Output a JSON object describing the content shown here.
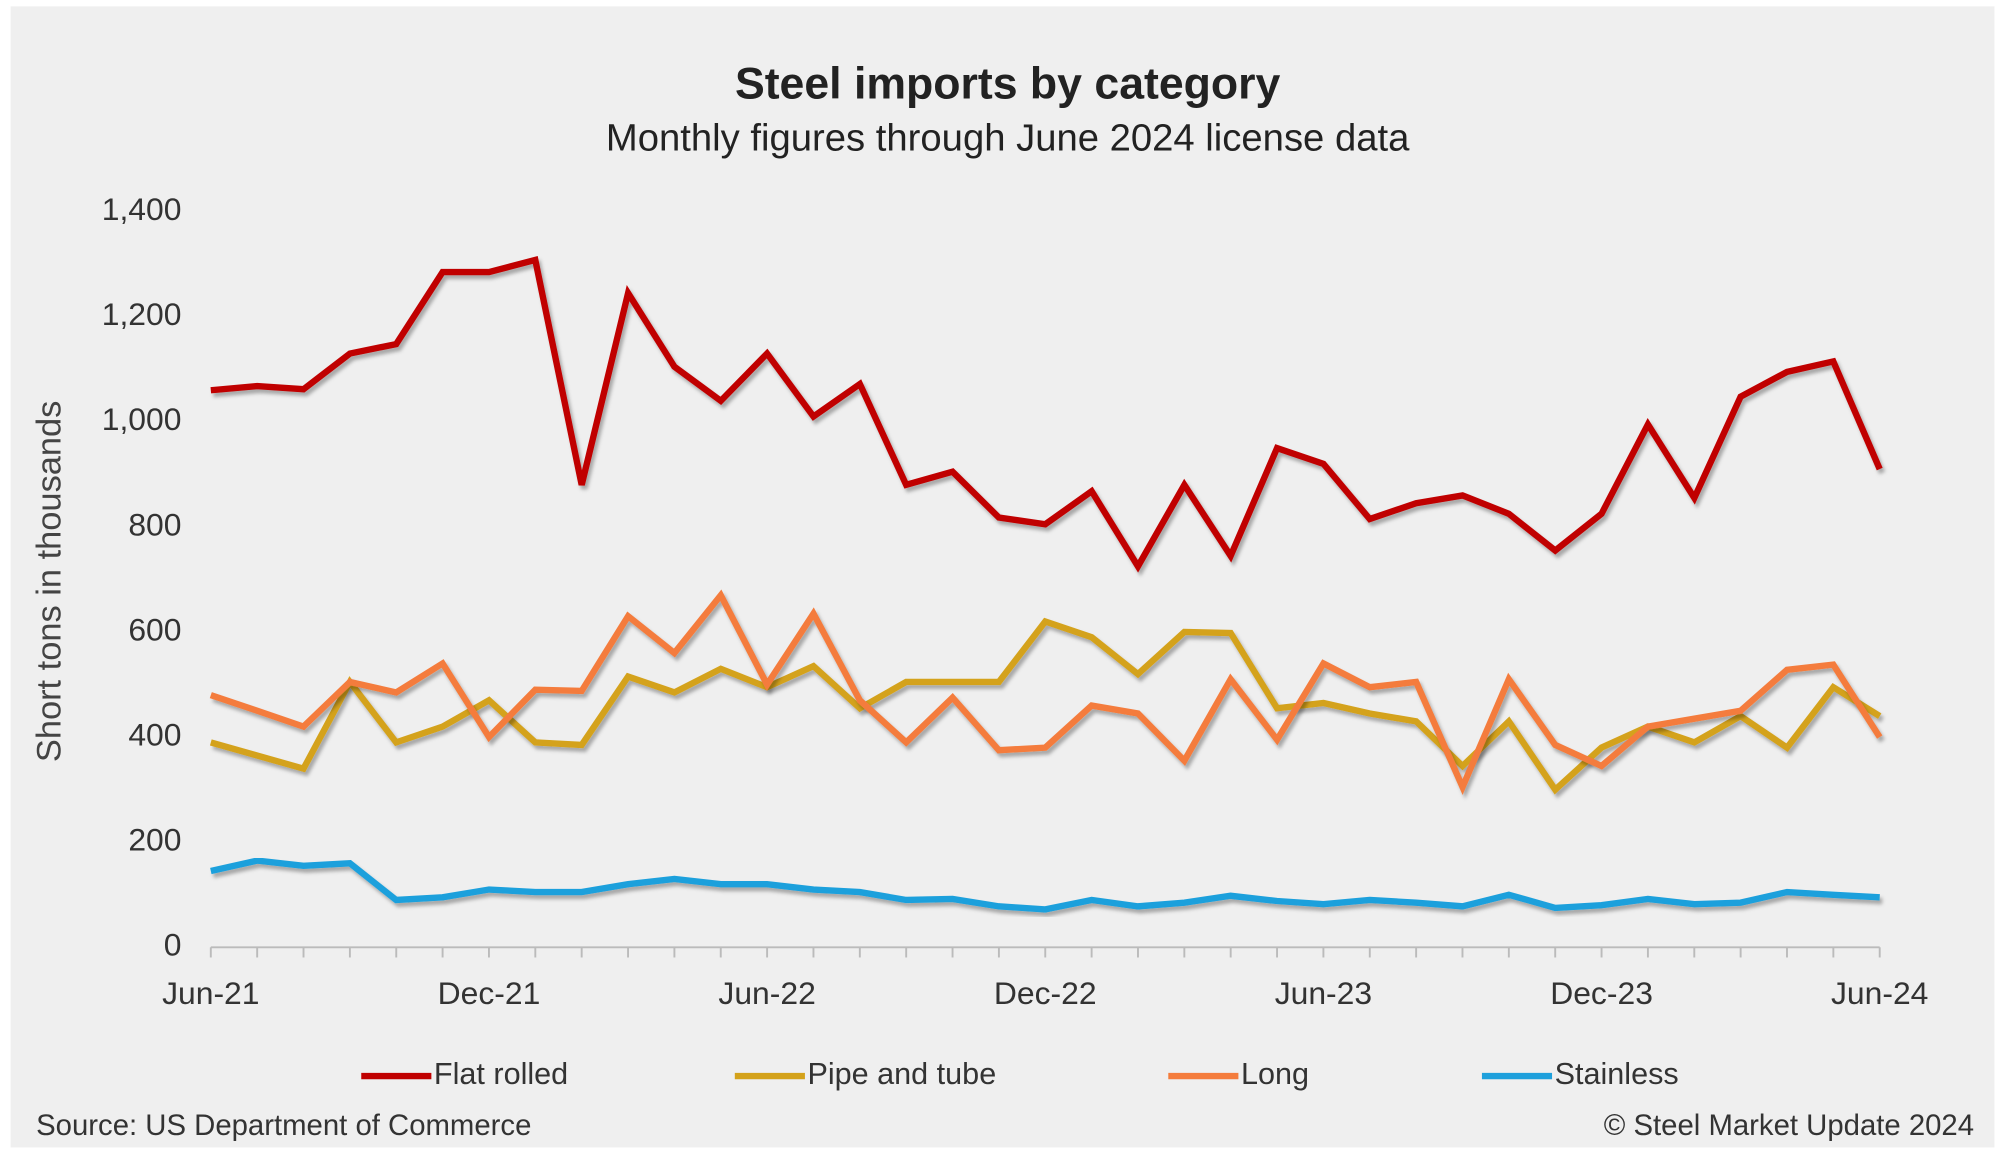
{
  "chart_data": {
    "type": "line",
    "title": "Steel imports by category",
    "subtitle": "Monthly figures through June 2024 license data",
    "y_label": "Short tons in thousands",
    "source": "Source: US Department of Commerce",
    "copyright": "© Steel Market Update 2024",
    "categories": [
      "Jun-21",
      null,
      null,
      null,
      null,
      null,
      "Dec-21",
      null,
      null,
      null,
      null,
      null,
      "Jun-22",
      null,
      null,
      null,
      null,
      null,
      "Dec-22",
      null,
      null,
      null,
      null,
      null,
      "Jun-23",
      null,
      null,
      null,
      null,
      null,
      "Dec-23",
      null,
      null,
      null,
      null,
      null,
      "Jun-24"
    ],
    "ylim": [
      0,
      1400
    ],
    "yticks": [
      0,
      200,
      400,
      600,
      800,
      {
        "value": 1000,
        "label": "1,000"
      },
      {
        "value": 1200,
        "label": "1,200"
      },
      {
        "value": 1400,
        "label": "1,400"
      }
    ],
    "grid": false,
    "legend": "bottom",
    "series": [
      {
        "name": "Flat rolled",
        "color": "#c00000",
        "values": [
          1060,
          1068,
          1062,
          1130,
          1148,
          1285,
          1285,
          1308,
          880,
          1245,
          1105,
          1040,
          1130,
          1010,
          1072,
          880,
          905,
          818,
          805,
          868,
          725,
          880,
          745,
          950,
          920,
          815,
          845,
          860,
          825,
          755,
          825,
          995,
          855,
          1048,
          1095,
          1115,
          910
        ]
      },
      {
        "name": "Pipe and tube",
        "color": "#d4a21a",
        "values": [
          390,
          365,
          340,
          505,
          390,
          420,
          470,
          390,
          385,
          515,
          485,
          530,
          495,
          535,
          455,
          505,
          505,
          505,
          620,
          590,
          520,
          600,
          598,
          455,
          465,
          445,
          430,
          345,
          430,
          300,
          380,
          420,
          390,
          440,
          380,
          495,
          440
        ]
      },
      {
        "name": "Long",
        "color": "#f47c3c",
        "values": [
          480,
          450,
          420,
          505,
          485,
          540,
          400,
          490,
          488,
          630,
          560,
          670,
          500,
          635,
          470,
          390,
          475,
          375,
          380,
          460,
          445,
          355,
          510,
          395,
          540,
          495,
          505,
          305,
          510,
          385,
          345,
          420,
          435,
          450,
          528,
          538,
          400
        ]
      },
      {
        "name": "Stainless",
        "color": "#1ea0dc",
        "values": [
          145,
          165,
          155,
          160,
          90,
          95,
          110,
          105,
          105,
          120,
          130,
          120,
          120,
          110,
          105,
          90,
          92,
          78,
          72,
          90,
          78,
          85,
          98,
          88,
          82,
          90,
          85,
          78,
          100,
          75,
          80,
          92,
          82,
          85,
          105,
          100,
          95
        ]
      }
    ]
  }
}
